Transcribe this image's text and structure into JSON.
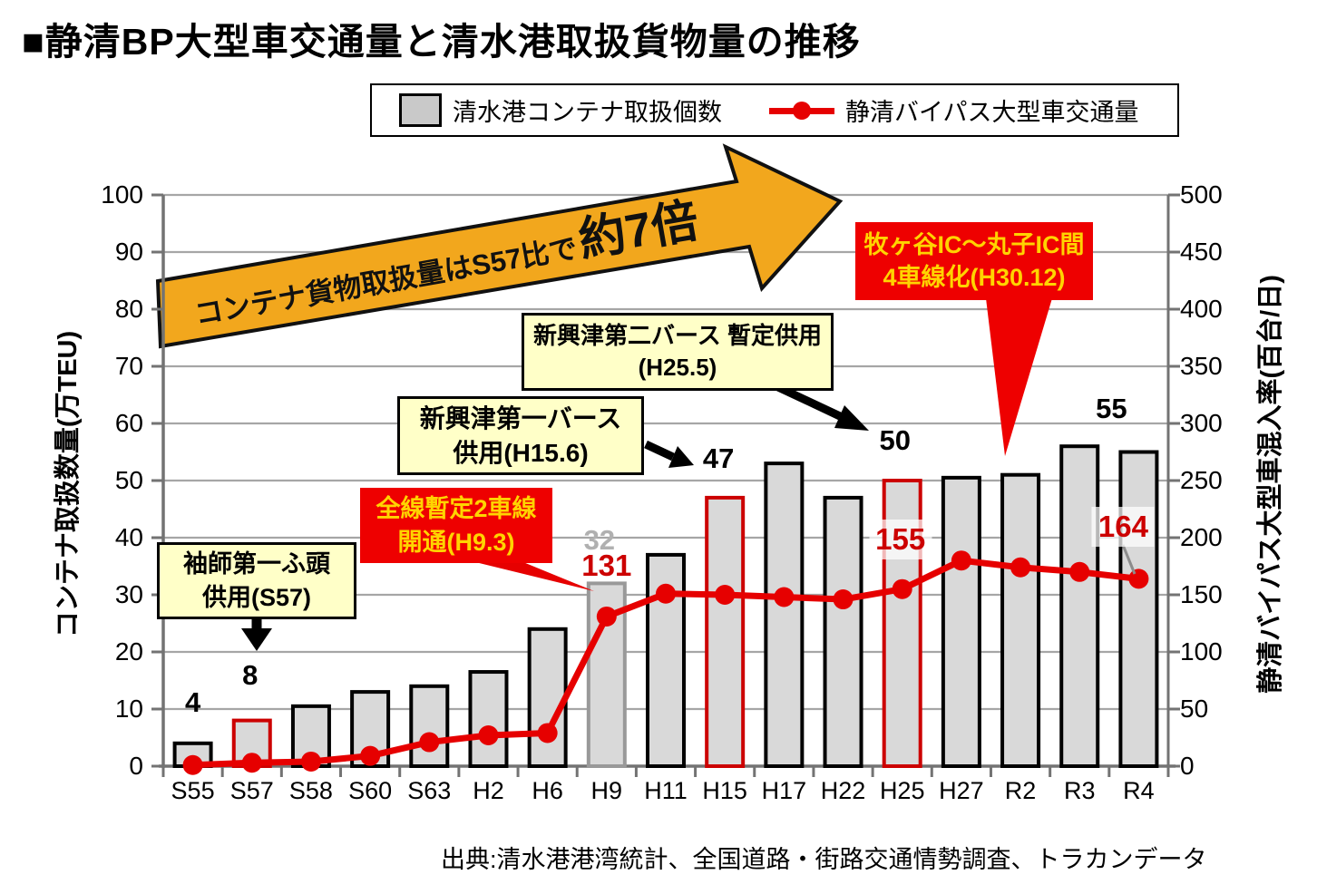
{
  "title": "■静清BP大型車交通量と清水港取扱貨物量の推移",
  "legend": {
    "bar_label": "清水港コンテナ取扱個数",
    "line_label": "静清バイパス大型車交通量"
  },
  "axes": {
    "left_title": "コンテナ取扱数量(万TEU)",
    "right_title": "静清バイパス大型車混入率(百台/日)",
    "left_ticks": [
      0,
      10,
      20,
      30,
      40,
      50,
      60,
      70,
      80,
      90,
      100
    ],
    "right_ticks": [
      0,
      50,
      100,
      150,
      200,
      250,
      300,
      350,
      400,
      450,
      500
    ],
    "left_max": 100,
    "right_max": 500
  },
  "chart_data": {
    "type": "bar+line",
    "title": "静清BP大型車交通量と清水港取扱貨物量の推移",
    "categories": [
      "S55",
      "S57",
      "S58",
      "S60",
      "S63",
      "H2",
      "H6",
      "H9",
      "H11",
      "H15",
      "H17",
      "H22",
      "H25",
      "H27",
      "R2",
      "R3",
      "R4"
    ],
    "series": [
      {
        "name": "清水港コンテナ取扱個数",
        "type": "bar",
        "axis": "left",
        "unit": "万TEU",
        "values": [
          4,
          8,
          10.5,
          13,
          14,
          16.5,
          24,
          32,
          37,
          47,
          53,
          47,
          50,
          50.5,
          51,
          56,
          55
        ],
        "red_border_categories": [
          "S57",
          "H15",
          "H25"
        ],
        "gray_border_categories": [
          "H9"
        ]
      },
      {
        "name": "静清バイパス大型車交通量",
        "type": "line",
        "axis": "right",
        "unit": "百台/日",
        "values": [
          1,
          3,
          4,
          9,
          21,
          27,
          29,
          131,
          151,
          150,
          148,
          146,
          155,
          180,
          174,
          170,
          164
        ]
      }
    ],
    "point_labels": [
      {
        "category": "S55",
        "series": "bar",
        "text": "4",
        "color": "#000000",
        "bg": false
      },
      {
        "category": "S57",
        "series": "bar",
        "text": "8",
        "color": "#000000",
        "bg": false
      },
      {
        "category": "H9",
        "series": "bar",
        "text": "32",
        "color": "#b0b0b0",
        "bg": false
      },
      {
        "category": "H15",
        "series": "bar",
        "text": "47",
        "color": "#000000",
        "bg": false
      },
      {
        "category": "H25",
        "series": "bar",
        "text": "50",
        "color": "#000000",
        "bg": false
      },
      {
        "category": "R4",
        "series": "bar",
        "text": "55",
        "color": "#000000",
        "bg": false
      },
      {
        "category": "H9",
        "series": "line",
        "text": "131",
        "color": "#cc0000",
        "bg": false
      },
      {
        "category": "H25",
        "series": "line",
        "text": "155",
        "color": "#cc0000",
        "bg": true
      },
      {
        "category": "R4",
        "series": "line",
        "text": "164",
        "color": "#cc0000",
        "bg": true
      }
    ],
    "ylim_left": [
      0,
      100
    ],
    "ylim_right": [
      0,
      500
    ],
    "grid": true,
    "legend_position": "top"
  },
  "banner": {
    "text": "コンテナ貨物取扱量はS57比で",
    "big_text": "約7倍"
  },
  "annotations": [
    {
      "id": "sodeshi",
      "style": "yellow",
      "lines": [
        "袖師第一ふ頭",
        "供用(S57)"
      ]
    },
    {
      "id": "zensen",
      "style": "red",
      "lines": [
        "全線暫定2車線",
        "開通(H9.3)"
      ]
    },
    {
      "id": "berth1",
      "style": "yellow",
      "lines": [
        "新興津第一バース",
        "供用(H15.6)"
      ]
    },
    {
      "id": "berth2",
      "style": "yellow",
      "lines": [
        "新興津第二バース 暫定供用",
        "(H25.5)"
      ]
    },
    {
      "id": "makigaya",
      "style": "red",
      "lines": [
        "牧ヶ谷IC〜丸子IC間",
        "4車線化(H30.12)"
      ]
    }
  ],
  "source": "出典:清水港港湾統計、全国道路・街路交通情勢調査、トラカンデータ",
  "colors": {
    "bar_fill": "#d9d9d9",
    "bar_border": "#000000",
    "bar_border_red": "#cc0000",
    "bar_border_gray": "#999999",
    "line": "#e60000",
    "banner_fill": "#f2a71d",
    "annotation_yellow_bg": "#ffffc8",
    "annotation_red_bg": "#ee0000",
    "annotation_red_text": "#ffd400",
    "grid": "#a6a6a6",
    "axis": "#737373"
  }
}
